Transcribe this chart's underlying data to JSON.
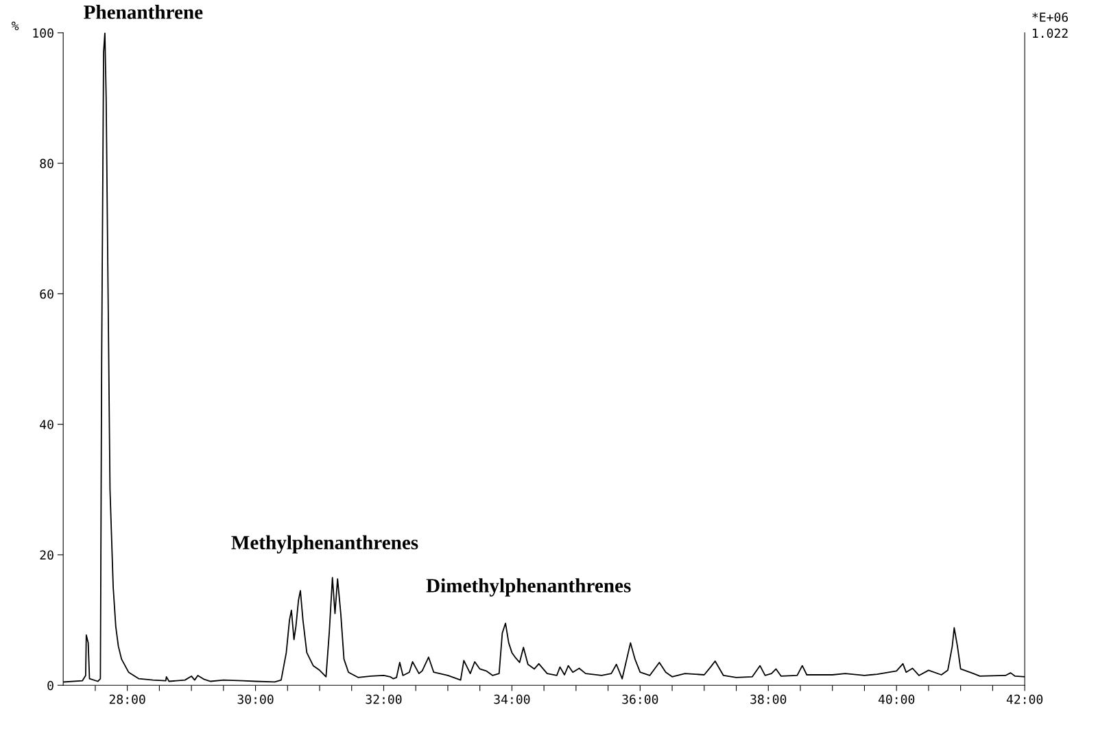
{
  "chart_data": {
    "type": "line",
    "ylabel": "%",
    "x": [
      27.0,
      27.3,
      27.35,
      27.36,
      27.39,
      27.41,
      27.54,
      27.58,
      27.6,
      27.63,
      27.65,
      27.67,
      27.7,
      27.73,
      27.78,
      27.82,
      27.86,
      27.91,
      28.02,
      28.18,
      28.4,
      28.6,
      28.61,
      28.65,
      28.9,
      29.0,
      29.05,
      29.1,
      29.2,
      29.3,
      29.5,
      29.8,
      30.0,
      30.3,
      30.4,
      30.48,
      30.53,
      30.56,
      30.6,
      30.63,
      30.67,
      30.7,
      30.74,
      30.8,
      30.9,
      31.0,
      31.1,
      31.15,
      31.2,
      31.24,
      31.28,
      31.33,
      31.38,
      31.45,
      31.6,
      31.8,
      32.0,
      32.1,
      32.15,
      32.2,
      32.25,
      32.3,
      32.4,
      32.45,
      32.55,
      32.6,
      32.7,
      32.78,
      33.0,
      33.2,
      33.25,
      33.35,
      33.42,
      33.5,
      33.6,
      33.7,
      33.8,
      33.85,
      33.9,
      33.95,
      34.0,
      34.05,
      34.12,
      34.18,
      34.25,
      34.35,
      34.42,
      34.55,
      34.7,
      34.75,
      34.82,
      34.88,
      34.95,
      35.05,
      35.15,
      35.4,
      35.55,
      35.63,
      35.72,
      35.85,
      35.92,
      36.0,
      36.15,
      36.3,
      36.4,
      36.5,
      36.7,
      37.0,
      37.1,
      37.17,
      37.3,
      37.5,
      37.75,
      37.87,
      37.95,
      38.05,
      38.12,
      38.2,
      38.45,
      38.53,
      38.6,
      39.0,
      39.2,
      39.5,
      39.7,
      40.0,
      40.1,
      40.15,
      40.25,
      40.35,
      40.5,
      40.7,
      40.8,
      40.87,
      40.9,
      40.95,
      41.0,
      41.2,
      41.3,
      41.7,
      41.78,
      41.85,
      42.0
    ],
    "series": [
      {
        "color": "#000000",
        "values": [
          0.5,
          0.7,
          1.5,
          7.7,
          6.5,
          1,
          0.6,
          1,
          50,
          97,
          100,
          90,
          60,
          30,
          15,
          9,
          6,
          4,
          2,
          1,
          0.8,
          0.7,
          1.3,
          0.6,
          0.8,
          1.4,
          0.8,
          1.5,
          0.9,
          0.6,
          0.8,
          0.7,
          0.6,
          0.5,
          0.8,
          5,
          10,
          11.5,
          7,
          9,
          13,
          14.5,
          10,
          5,
          3,
          2.3,
          1.3,
          8,
          16.5,
          11,
          16.3,
          11,
          4,
          2,
          1.2,
          1.4,
          1.5,
          1.3,
          1.0,
          1.2,
          3.5,
          1.5,
          2,
          3.6,
          1.8,
          2.2,
          4.3,
          2,
          1.5,
          0.8,
          3.8,
          1.8,
          3.6,
          2.5,
          2.2,
          1.5,
          1.8,
          8,
          9.5,
          6.5,
          5,
          4.3,
          3.5,
          5.8,
          3.2,
          2.5,
          3.3,
          1.8,
          1.5,
          2.8,
          1.6,
          3,
          2,
          2.6,
          1.8,
          1.5,
          1.8,
          3.2,
          1,
          6.5,
          4,
          2,
          1.5,
          3.5,
          2,
          1.3,
          1.8,
          1.6,
          2.8,
          3.7,
          1.5,
          1.2,
          1.3,
          3,
          1.5,
          1.8,
          2.5,
          1.4,
          1.5,
          3,
          1.6,
          1.6,
          1.8,
          1.5,
          1.7,
          2.2,
          3.3,
          2,
          2.6,
          1.5,
          2.3,
          1.6,
          2.3,
          6,
          8.8,
          6,
          2.5,
          1.8,
          1.4,
          1.5,
          1.9,
          1.4,
          1.3
        ]
      }
    ],
    "xlim": [
      27,
      42
    ],
    "xticks": [
      {
        "value": 27.5,
        "label": null
      },
      {
        "value": 28,
        "label": "28:00"
      },
      {
        "value": 28.5,
        "label": null
      },
      {
        "value": 29,
        "label": null
      },
      {
        "value": 29.5,
        "label": null
      },
      {
        "value": 30,
        "label": "30:00"
      },
      {
        "value": 30.5,
        "label": null
      },
      {
        "value": 31,
        "label": null
      },
      {
        "value": 31.5,
        "label": null
      },
      {
        "value": 32,
        "label": "32:00"
      },
      {
        "value": 32.5,
        "label": null
      },
      {
        "value": 33,
        "label": null
      },
      {
        "value": 33.5,
        "label": null
      },
      {
        "value": 34,
        "label": "34:00"
      },
      {
        "value": 34.5,
        "label": null
      },
      {
        "value": 35,
        "label": null
      },
      {
        "value": 35.5,
        "label": null
      },
      {
        "value": 36,
        "label": "36:00"
      },
      {
        "value": 36.5,
        "label": null
      },
      {
        "value": 37,
        "label": null
      },
      {
        "value": 37.5,
        "label": null
      },
      {
        "value": 38,
        "label": "38:00"
      },
      {
        "value": 38.5,
        "label": null
      },
      {
        "value": 39,
        "label": null
      },
      {
        "value": 39.5,
        "label": null
      },
      {
        "value": 40,
        "label": "40:00"
      },
      {
        "value": 40.5,
        "label": null
      },
      {
        "value": 41,
        "label": null
      },
      {
        "value": 41.5,
        "label": null
      },
      {
        "value": 42,
        "label": "42:00"
      }
    ],
    "ylim": [
      0,
      100
    ],
    "yticks": [
      0,
      20,
      40,
      60,
      80,
      100
    ],
    "grid": false,
    "legend": false,
    "marker": "none",
    "line_style": "solid",
    "annotations": [
      "Phenanthrene",
      "Methylphenanthrenes",
      "Dimethylphenanthrenes",
      "*E+06",
      "1.022"
    ]
  }
}
